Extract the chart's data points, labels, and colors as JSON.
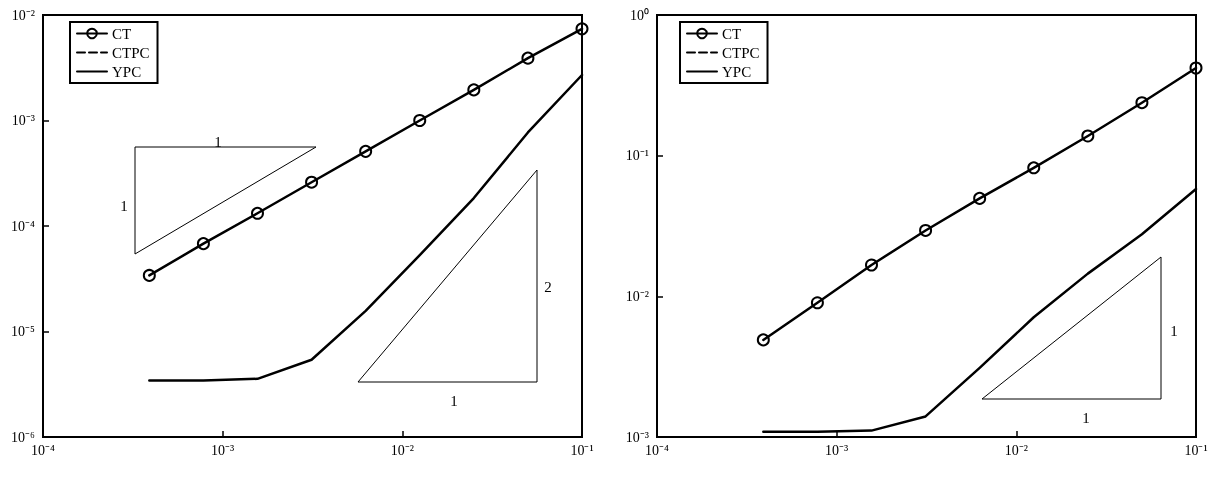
{
  "chart_data": [
    {
      "type": "line",
      "log": "xy",
      "legend": "top left",
      "grid": false,
      "x": [
        0.000390625,
        0.00078125,
        0.0015625,
        0.003125,
        0.00625,
        0.0125,
        0.025,
        0.05,
        0.1
      ],
      "xlim": [
        0.0001,
        0.1
      ],
      "ylim": [
        1e-06,
        0.01
      ],
      "xticks": [
        {
          "value": 0.0001,
          "label": "10⁻⁴"
        },
        {
          "value": 0.001,
          "label": "10⁻³"
        },
        {
          "value": 0.01,
          "label": "10⁻²"
        },
        {
          "value": 0.1,
          "label": "10⁻¹"
        }
      ],
      "yticks": [
        {
          "value": 1e-06,
          "label": "10⁻⁶"
        },
        {
          "value": 1e-05,
          "label": "10⁻⁵"
        },
        {
          "value": 0.0001,
          "label": "10⁻⁴"
        },
        {
          "value": 0.001,
          "label": "10⁻³"
        },
        {
          "value": 0.01,
          "label": "10⁻²"
        }
      ],
      "series": [
        {
          "name": "CT",
          "color": "#000000",
          "marker": "circle",
          "line_style": "solid",
          "values": [
            3.4e-05,
            6.8e-05,
            0.000132,
            0.00026,
            0.00051,
            0.001,
            0.00195,
            0.0039,
            0.0074
          ]
        },
        {
          "name": "CTPC",
          "color": "#000000",
          "marker": "none",
          "line_style": "dashed",
          "values": [
            null,
            null,
            null,
            null,
            null,
            null,
            null,
            null,
            null
          ]
        },
        {
          "name": "YPC",
          "color": "#000000",
          "marker": "none",
          "line_style": "solid",
          "values": [
            3.44e-06,
            3.44e-06,
            3.56e-06,
            5.4e-06,
            1.57e-05,
            5.3e-05,
            0.000184,
            0.00077,
            0.0027
          ]
        }
      ],
      "annotations": [
        "1",
        "1",
        "2",
        "1"
      ]
    },
    {
      "type": "line",
      "log": "xy",
      "legend": "top left",
      "grid": false,
      "x": [
        0.000390625,
        0.00078125,
        0.0015625,
        0.003125,
        0.00625,
        0.0125,
        0.025,
        0.05,
        0.1
      ],
      "xlim": [
        0.0001,
        0.1
      ],
      "ylim": [
        0.001,
        1
      ],
      "xticks": [
        {
          "value": 0.0001,
          "label": "10⁻⁴"
        },
        {
          "value": 0.001,
          "label": "10⁻³"
        },
        {
          "value": 0.01,
          "label": "10⁻²"
        },
        {
          "value": 0.1,
          "label": "10⁻¹"
        }
      ],
      "yticks": [
        {
          "value": 0.001,
          "label": "10⁻³"
        },
        {
          "value": 0.01,
          "label": "10⁻²"
        },
        {
          "value": 0.1,
          "label": "10⁻¹"
        },
        {
          "value": 1,
          "label": "10⁰"
        }
      ],
      "series": [
        {
          "name": "CT",
          "color": "#000000",
          "marker": "circle",
          "line_style": "solid",
          "values": [
            0.0049,
            0.009,
            0.0167,
            0.0294,
            0.0497,
            0.082,
            0.138,
            0.238,
            0.42
          ]
        },
        {
          "name": "CTPC",
          "color": "#000000",
          "marker": "none",
          "line_style": "dashed",
          "values": [
            null,
            null,
            null,
            null,
            null,
            null,
            null,
            null,
            null
          ]
        },
        {
          "name": "YPC",
          "color": "#000000",
          "marker": "none",
          "line_style": "solid",
          "values": [
            0.00109,
            0.00109,
            0.00111,
            0.0014,
            0.0031,
            0.0071,
            0.0145,
            0.0276,
            0.058
          ]
        }
      ],
      "annotations": [
        "1",
        "1"
      ]
    }
  ]
}
